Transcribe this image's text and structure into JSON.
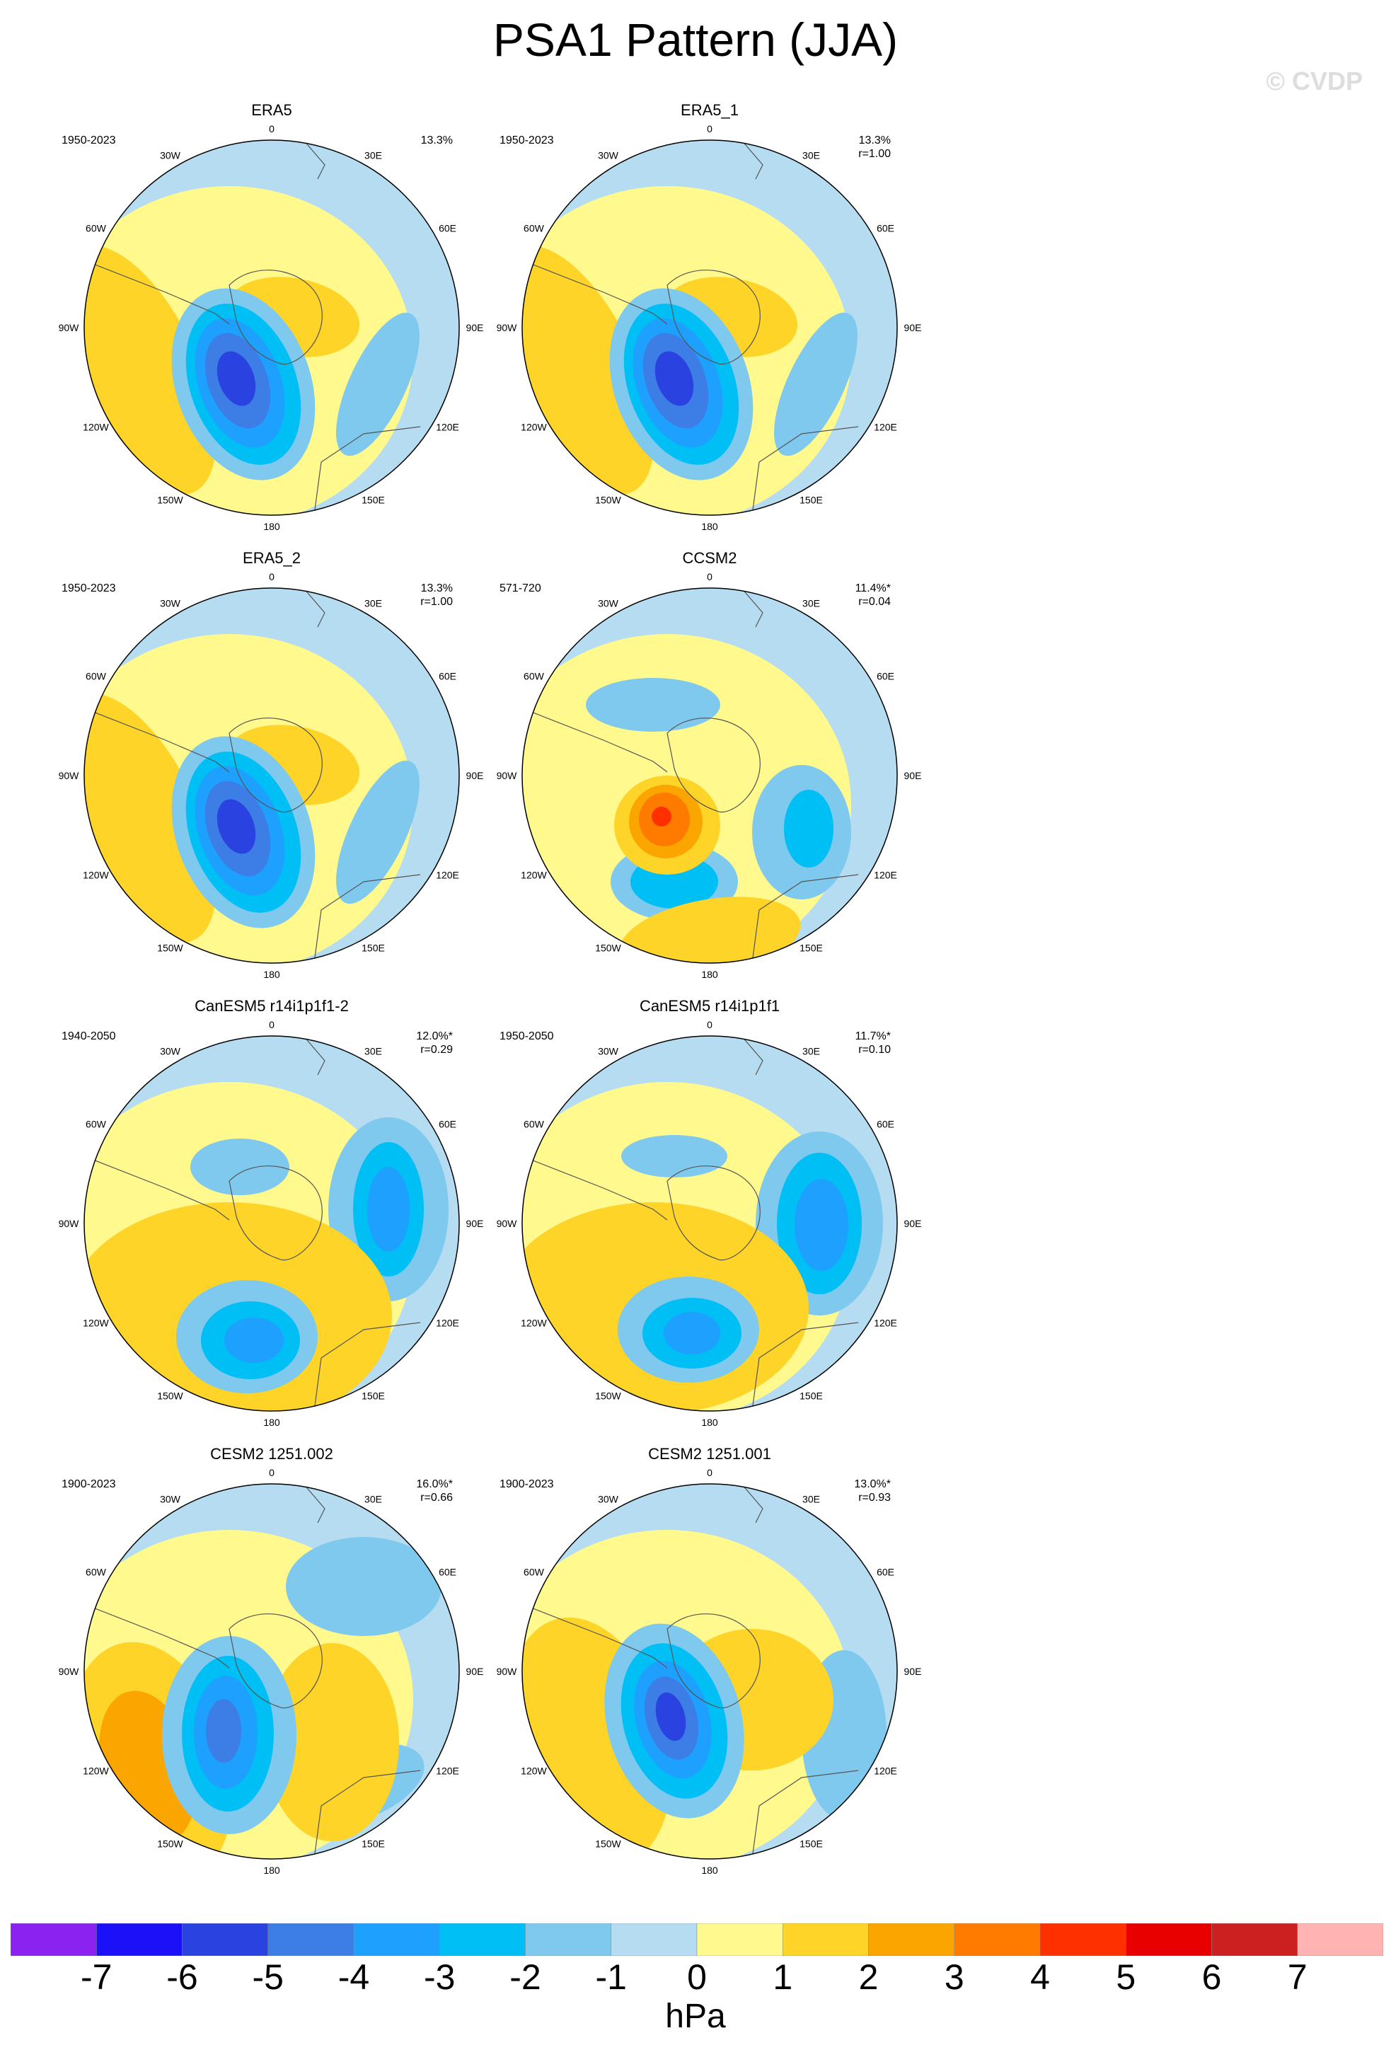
{
  "title": "PSA1 Pattern (JJA)",
  "watermark": "© CVDP",
  "colors": {
    "ocean_bg": "#b5dcf0",
    "neg1": "#7fc8ee",
    "neg2": "#00bff5",
    "neg3": "#1ea0ff",
    "neg4": "#3c7de6",
    "neg5": "#2a43e0",
    "zero_pos": "#fff98e",
    "pos1": "#fdd427",
    "pos2": "#fba600",
    "pos3": "#ff7b00",
    "pos4": "#ff3000",
    "coast": "#555555"
  },
  "map_labels": {
    "lon_0": "0",
    "lon_30e": "30E",
    "lon_60e": "60E",
    "lon_90e": "90E",
    "lon_120e": "120E",
    "lon_150e": "150E",
    "lon_180": "180",
    "lon_150w": "150W",
    "lon_120w": "120W",
    "lon_90w": "90W",
    "lon_60w": "60W",
    "lon_30w": "30W"
  },
  "panels": [
    {
      "name": "ERA5",
      "period": "1950-2023",
      "pct": "13.3%",
      "r": ""
    },
    {
      "name": "ERA5_1",
      "period": "1950-2023",
      "pct": "13.3%",
      "r": "r=1.00"
    },
    {
      "name": "ERA5_2",
      "period": "1950-2023",
      "pct": "13.3%",
      "r": "r=1.00"
    },
    {
      "name": "CCSM2",
      "period": "571-720",
      "pct": "11.4%*",
      "r": "r=0.04"
    },
    {
      "name": "CanESM5 r14i1p1f1-2",
      "period": "1940-2050",
      "pct": "12.0%*",
      "r": "r=0.29"
    },
    {
      "name": "CanESM5 r14i1p1f1",
      "period": "1950-2050",
      "pct": "11.7%*",
      "r": "r=0.10"
    },
    {
      "name": "CESM2 1251.002",
      "period": "1900-2023",
      "pct": "16.0%*",
      "r": "r=0.66"
    },
    {
      "name": "CESM2 1251.001",
      "period": "1900-2023",
      "pct": "13.0%*",
      "r": "r=0.93"
    }
  ],
  "colorbar": {
    "unit": "hPa",
    "ticks": [
      "-7",
      "-6",
      "-5",
      "-4",
      "-3",
      "-2",
      "-1",
      "0",
      "1",
      "2",
      "3",
      "4",
      "5",
      "6",
      "7"
    ],
    "colors": [
      "#8b22f0",
      "#1c10f8",
      "#2a43e0",
      "#3c7de6",
      "#1ea0ff",
      "#00bff5",
      "#7fc8ee",
      "#b5dcf0",
      "#fff98e",
      "#fdd427",
      "#fba600",
      "#ff7b00",
      "#ff3000",
      "#e80000",
      "#cc2020",
      "#ffb3b3"
    ]
  }
}
